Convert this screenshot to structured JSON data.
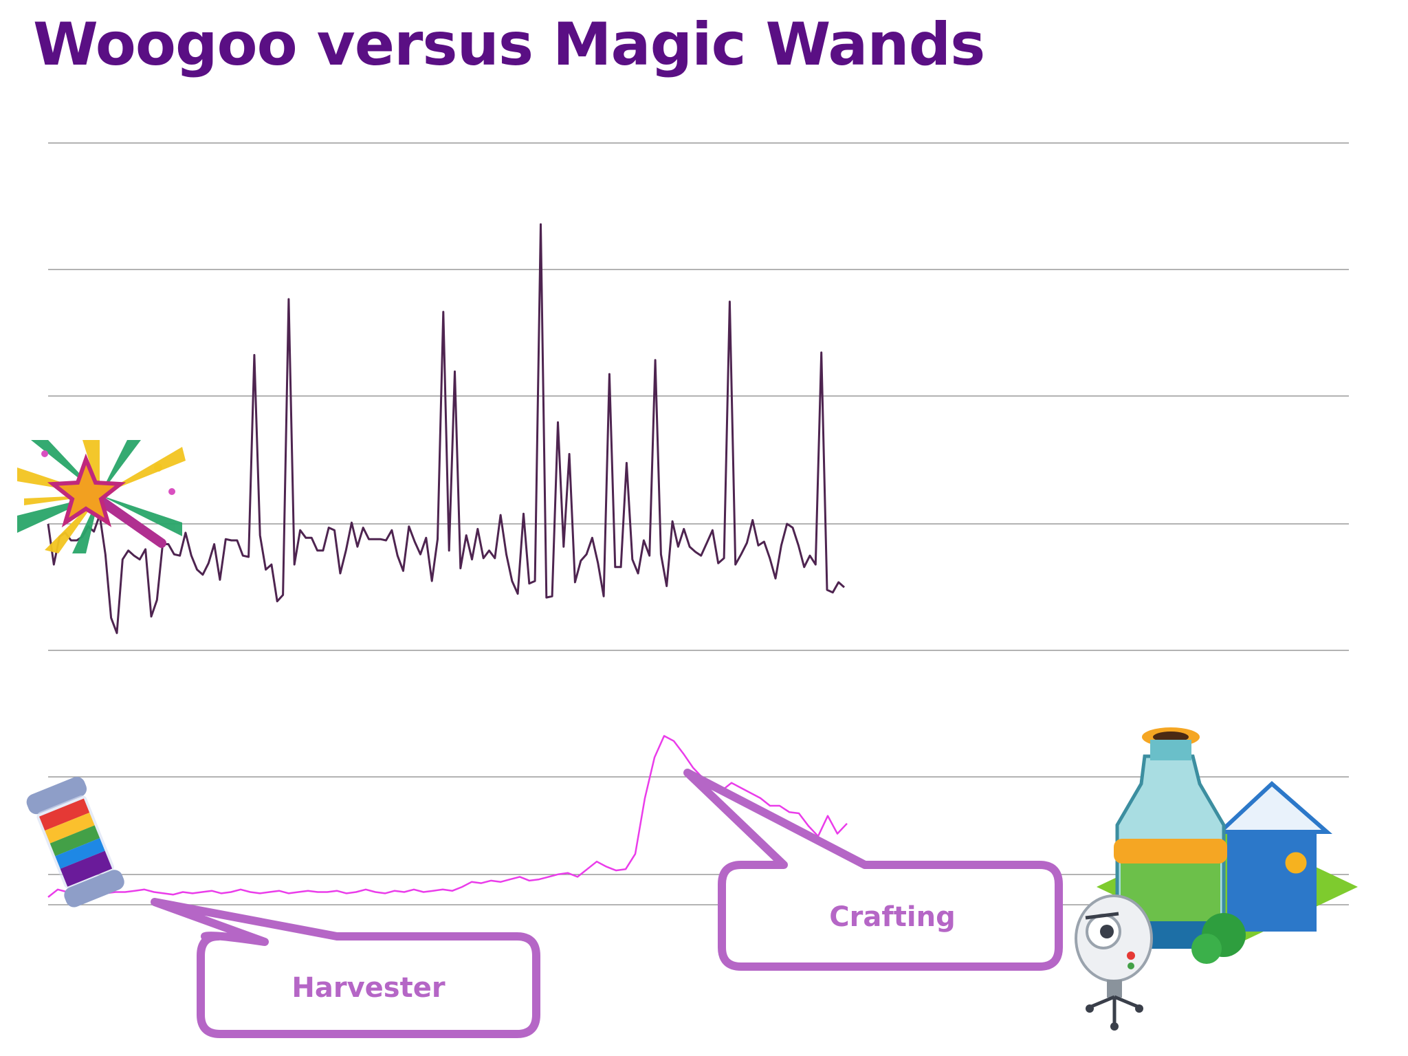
{
  "title": "Woogoo versus Magic Wands",
  "colors": {
    "title": "#5a0f84",
    "magic_wands_line": "#4e2450",
    "woogoo_line": "#ea3cea",
    "callout": "#b566c6",
    "gridline": "#9a9a9a"
  },
  "callouts": {
    "harvester": "Harvester",
    "crafting": "Crafting"
  },
  "icons": [
    "magic-wand-icon",
    "woogoo-vial-icon",
    "crafting-factory-icon",
    "robot-icon"
  ],
  "chart_data": {
    "type": "line",
    "grid": true,
    "legend": "none",
    "ylim": [
      0,
      6
    ],
    "x": {
      "start": 0,
      "end": 199,
      "extent": 315
    },
    "series": [
      {
        "key": "magic_wands",
        "values": [
          3.0,
          2.68,
          2.9,
          2.93,
          2.87,
          2.87,
          2.9,
          2.98,
          2.94,
          3.07,
          2.76,
          2.26,
          2.14,
          2.72,
          2.79,
          2.75,
          2.72,
          2.8,
          2.27,
          2.4,
          2.84,
          2.84,
          2.76,
          2.75,
          2.93,
          2.75,
          2.64,
          2.6,
          2.69,
          2.84,
          2.56,
          2.88,
          2.87,
          2.87,
          2.75,
          2.74,
          4.33,
          2.91,
          2.64,
          2.68,
          2.39,
          2.44,
          4.77,
          2.68,
          2.95,
          2.89,
          2.89,
          2.79,
          2.79,
          2.97,
          2.95,
          2.61,
          2.79,
          3.01,
          2.82,
          2.97,
          2.88,
          2.88,
          2.88,
          2.87,
          2.95,
          2.75,
          2.63,
          2.98,
          2.86,
          2.76,
          2.89,
          2.55,
          2.88,
          4.67,
          2.79,
          4.2,
          2.65,
          2.91,
          2.72,
          2.96,
          2.73,
          2.79,
          2.73,
          3.07,
          2.76,
          2.55,
          2.45,
          3.08,
          2.53,
          2.55,
          5.36,
          2.42,
          2.43,
          3.8,
          2.82,
          3.55,
          2.54,
          2.71,
          2.76,
          2.89,
          2.69,
          2.43,
          4.18,
          2.66,
          2.66,
          3.48,
          2.72,
          2.61,
          2.87,
          2.75,
          4.29,
          2.76,
          2.51,
          3.02,
          2.82,
          2.96,
          2.82,
          2.78,
          2.75,
          2.85,
          2.95,
          2.69,
          2.73,
          4.75,
          2.68,
          2.76,
          2.85,
          3.03,
          2.83,
          2.86,
          2.73,
          2.57,
          2.83,
          3.0,
          2.97,
          2.83,
          2.66,
          2.75,
          2.68,
          4.35,
          2.48,
          2.46,
          2.54,
          2.5
        ],
        "x_extent_note": ""
      },
      {
        "key": "woogoo",
        "values": [
          0.06,
          0.12,
          0.1,
          0.09,
          0.08,
          0.08,
          0.09,
          0.1,
          0.1,
          0.11,
          0.12,
          0.1,
          0.09,
          0.08,
          0.1,
          0.09,
          0.1,
          0.11,
          0.09,
          0.1,
          0.12,
          0.1,
          0.09,
          0.1,
          0.11,
          0.09,
          0.1,
          0.11,
          0.1,
          0.1,
          0.11,
          0.09,
          0.1,
          0.12,
          0.1,
          0.09,
          0.11,
          0.1,
          0.12,
          0.1,
          0.11,
          0.12,
          0.11,
          0.14,
          0.18,
          0.17,
          0.19,
          0.18,
          0.2,
          0.22,
          0.19,
          0.2,
          0.22,
          0.24,
          0.25,
          0.22,
          0.28,
          0.34,
          0.3,
          0.27,
          0.28,
          0.4,
          0.84,
          1.16,
          1.33,
          1.29,
          1.19,
          1.08,
          1.0,
          0.92,
          0.9,
          0.96,
          0.92,
          0.88,
          0.84,
          0.78,
          0.78,
          0.73,
          0.72,
          0.62,
          0.54,
          0.7,
          0.56,
          0.64
        ]
      }
    ]
  }
}
